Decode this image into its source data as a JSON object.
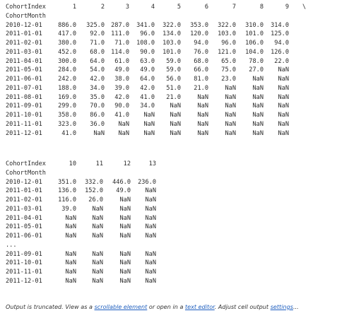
{
  "output": {
    "table1": {
      "header_label": "CohortIndex",
      "columns": [
        "1",
        "2",
        "3",
        "4",
        "5",
        "6",
        "7",
        "8",
        "9"
      ],
      "continuation": "\\",
      "index_name": "CohortMonth",
      "rows": [
        {
          "month": "2010-12-01",
          "values": [
            "886.0",
            "325.0",
            "287.0",
            "341.0",
            "322.0",
            "353.0",
            "322.0",
            "310.0",
            "314.0"
          ]
        },
        {
          "month": "2011-01-01",
          "values": [
            "417.0",
            "92.0",
            "111.0",
            "96.0",
            "134.0",
            "120.0",
            "103.0",
            "101.0",
            "125.0"
          ]
        },
        {
          "month": "2011-02-01",
          "values": [
            "380.0",
            "71.0",
            "71.0",
            "108.0",
            "103.0",
            "94.0",
            "96.0",
            "106.0",
            "94.0"
          ]
        },
        {
          "month": "2011-03-01",
          "values": [
            "452.0",
            "68.0",
            "114.0",
            "90.0",
            "101.0",
            "76.0",
            "121.0",
            "104.0",
            "126.0"
          ]
        },
        {
          "month": "2011-04-01",
          "values": [
            "300.0",
            "64.0",
            "61.0",
            "63.0",
            "59.0",
            "68.0",
            "65.0",
            "78.0",
            "22.0"
          ]
        },
        {
          "month": "2011-05-01",
          "values": [
            "284.0",
            "54.0",
            "49.0",
            "49.0",
            "59.0",
            "66.0",
            "75.0",
            "27.0",
            "NaN"
          ]
        },
        {
          "month": "2011-06-01",
          "values": [
            "242.0",
            "42.0",
            "38.0",
            "64.0",
            "56.0",
            "81.0",
            "23.0",
            "NaN",
            "NaN"
          ]
        },
        {
          "month": "2011-07-01",
          "values": [
            "188.0",
            "34.0",
            "39.0",
            "42.0",
            "51.0",
            "21.0",
            "NaN",
            "NaN",
            "NaN"
          ]
        },
        {
          "month": "2011-08-01",
          "values": [
            "169.0",
            "35.0",
            "42.0",
            "41.0",
            "21.0",
            "NaN",
            "NaN",
            "NaN",
            "NaN"
          ]
        },
        {
          "month": "2011-09-01",
          "values": [
            "299.0",
            "70.0",
            "90.0",
            "34.0",
            "NaN",
            "NaN",
            "NaN",
            "NaN",
            "NaN"
          ]
        },
        {
          "month": "2011-10-01",
          "values": [
            "358.0",
            "86.0",
            "41.0",
            "NaN",
            "NaN",
            "NaN",
            "NaN",
            "NaN",
            "NaN"
          ]
        },
        {
          "month": "2011-11-01",
          "values": [
            "323.0",
            "36.0",
            "NaN",
            "NaN",
            "NaN",
            "NaN",
            "NaN",
            "NaN",
            "NaN"
          ]
        },
        {
          "month": "2011-12-01",
          "values": [
            "41.0",
            "NaN",
            "NaN",
            "NaN",
            "NaN",
            "NaN",
            "NaN",
            "NaN",
            "NaN"
          ]
        }
      ]
    },
    "table2": {
      "header_label": "CohortIndex",
      "columns": [
        "10",
        "11",
        "12",
        "13"
      ],
      "index_name": "CohortMonth",
      "rows": [
        {
          "month": "2010-12-01",
          "values": [
            "351.0",
            "332.0",
            "446.0",
            "236.0"
          ]
        },
        {
          "month": "2011-01-01",
          "values": [
            "136.0",
            "152.0",
            "49.0",
            "NaN"
          ]
        },
        {
          "month": "2011-02-01",
          "values": [
            "116.0",
            "26.0",
            "NaN",
            "NaN"
          ]
        },
        {
          "month": "2011-03-01",
          "values": [
            "39.0",
            "NaN",
            "NaN",
            "NaN"
          ]
        },
        {
          "month": "2011-04-01",
          "values": [
            "NaN",
            "NaN",
            "NaN",
            "NaN"
          ]
        },
        {
          "month": "2011-05-01",
          "values": [
            "NaN",
            "NaN",
            "NaN",
            "NaN"
          ]
        },
        {
          "month": "2011-06-01",
          "values": [
            "NaN",
            "NaN",
            "NaN",
            "NaN"
          ]
        }
      ],
      "ellipsis": "...",
      "rows_tail": [
        {
          "month": "2011-09-01",
          "values": [
            "NaN",
            "NaN",
            "NaN",
            "NaN"
          ]
        },
        {
          "month": "2011-10-01",
          "values": [
            "NaN",
            "NaN",
            "NaN",
            "NaN"
          ]
        },
        {
          "month": "2011-11-01",
          "values": [
            "NaN",
            "NaN",
            "NaN",
            "NaN"
          ]
        },
        {
          "month": "2011-12-01",
          "values": [
            "NaN",
            "NaN",
            "NaN",
            "NaN"
          ]
        }
      ]
    },
    "footer": {
      "prefix": "Output is truncated. View as a ",
      "scrollable_link": "scrollable element",
      "middle": " or open in a ",
      "editor_link": "text editor",
      "after_editor": ". Adjust cell output ",
      "settings_link": "settings",
      "suffix": "..."
    }
  }
}
